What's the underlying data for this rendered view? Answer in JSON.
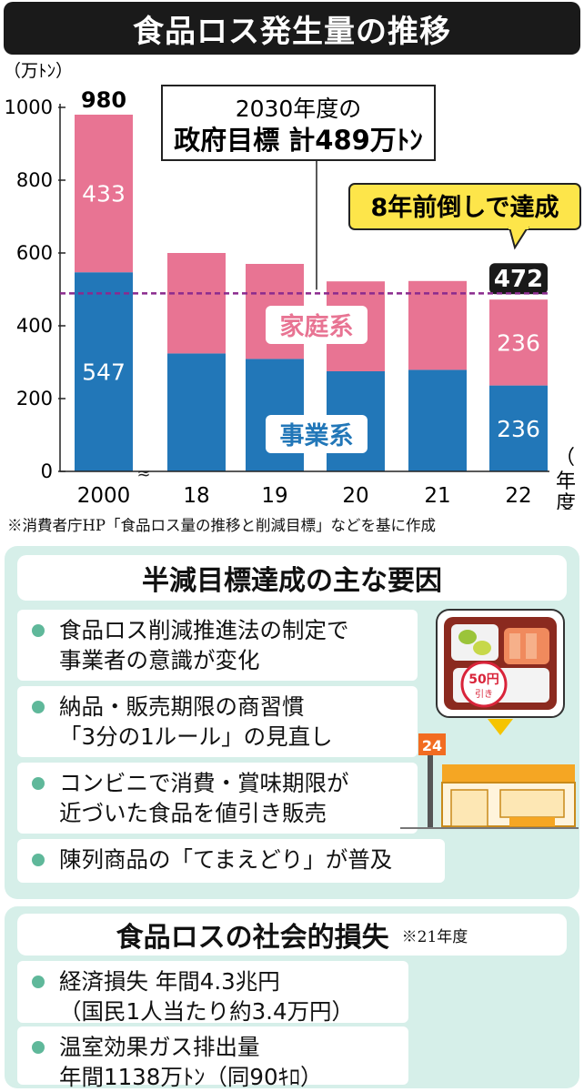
{
  "title": "食品ロス発生量の推移",
  "chart_data": {
    "type": "bar",
    "stacked": true,
    "y_unit_label": "（万ﾄﾝ）",
    "x_unit_label": "年度",
    "ylim": [
      0,
      1000
    ],
    "y_ticks": [
      "0",
      "200",
      "400",
      "600",
      "800",
      "1000"
    ],
    "categories": [
      "2000",
      "18",
      "19",
      "20",
      "21",
      "22"
    ],
    "series": [
      {
        "name": "事業系",
        "color": "#2277b8",
        "values": [
          547,
          324,
          309,
          275,
          279,
          236
        ]
      },
      {
        "name": "家庭系",
        "color": "#e87493",
        "values": [
          433,
          276,
          261,
          247,
          244,
          236
        ]
      }
    ],
    "totals_shown": [
      {
        "category": "2000",
        "label": "980"
      },
      {
        "category": "22",
        "label": "472"
      }
    ],
    "segment_labels": [
      {
        "category": "2000",
        "series": "家庭系",
        "label": "433"
      },
      {
        "category": "2000",
        "series": "事業系",
        "label": "547"
      },
      {
        "category": "22",
        "series": "家庭系",
        "label": "236"
      },
      {
        "category": "22",
        "series": "事業系",
        "label": "236"
      }
    ],
    "target_line": {
      "value": 489,
      "color": "#8a2a8e"
    },
    "target_callout": {
      "line1": "2030年度の",
      "line2": "政府目標 計489万ﾄﾝ"
    },
    "achieved_callout": "8年前倒しで達成",
    "axis_break_after": "2000"
  },
  "source_note": "※消費者庁HP「食品ロス量の推移と削減目標」などを基に作成",
  "factors": {
    "heading": "半減目標達成の主な要因",
    "items": [
      {
        "lines": [
          "食品ロス削減推進法の制定で",
          "事業者の意識が変化"
        ]
      },
      {
        "lines": [
          "納品・販売期限の商習慣",
          "「3分の1ルール」の見直し"
        ]
      },
      {
        "lines": [
          "コンビニで消費・賞味期限が",
          "近づいた食品を値引き販売"
        ]
      },
      {
        "lines": [
          "陳列商品の「てまえどり」が普及"
        ]
      }
    ],
    "illustration": {
      "store_sign": "24",
      "sticker_price": "50円",
      "sticker_text": "引き"
    }
  },
  "loss": {
    "heading": "食品ロスの社会的損失",
    "note": "※21年度",
    "items": [
      {
        "lines": [
          "経済損失 年間4.3兆円",
          "（国民1人当たり約3.4万円）"
        ]
      },
      {
        "lines": [
          "温室効果ガス排出量",
          "年間1138万ﾄﾝ（同90ｷﾛ）"
        ]
      }
    ]
  }
}
